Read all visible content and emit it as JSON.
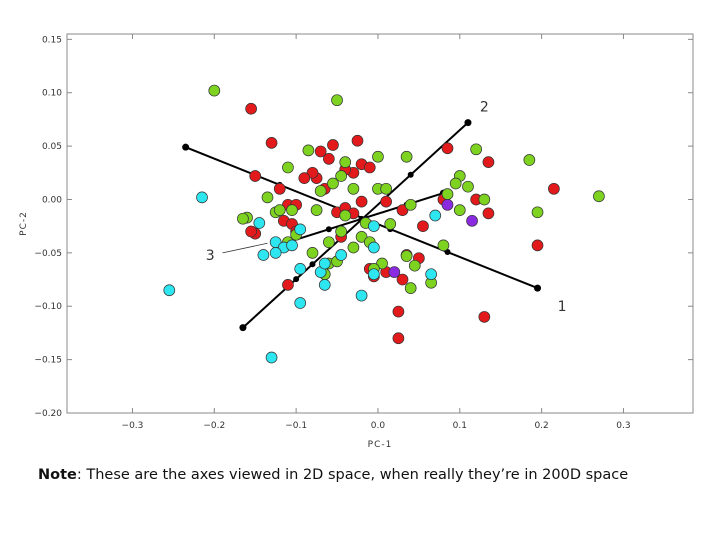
{
  "chart_data": {
    "type": "scatter",
    "title": "",
    "xlabel": "PC-1",
    "ylabel": "PC-2",
    "xlim": [
      -0.38,
      0.385
    ],
    "ylim": [
      -0.2,
      0.155
    ],
    "xticks": [
      -0.3,
      -0.2,
      -0.1,
      0.0,
      0.1,
      0.2,
      0.3
    ],
    "xtick_labels": [
      "-0.3",
      "-0.2",
      "-0.1",
      "0.0",
      "0.1",
      "0.2",
      "0.3"
    ],
    "yticks": [
      -0.2,
      -0.15,
      -0.1,
      -0.05,
      0.0,
      0.05,
      0.1,
      0.15
    ],
    "ytick_labels": [
      "-0.20",
      "-0.15",
      "-0.10",
      "-0.05",
      "0.00",
      "0.05",
      "0.10",
      "0.15"
    ],
    "grid": false,
    "legend": "none",
    "series": [
      {
        "color": "#e31a1c",
        "points": [
          [
            -0.155,
            0.085
          ],
          [
            -0.13,
            0.053
          ],
          [
            -0.07,
            0.045
          ],
          [
            -0.055,
            0.051
          ],
          [
            -0.025,
            0.055
          ],
          [
            -0.02,
            0.033
          ],
          [
            -0.01,
            0.03
          ],
          [
            -0.03,
            0.025
          ],
          [
            -0.04,
            0.028
          ],
          [
            -0.06,
            0.038
          ],
          [
            -0.075,
            0.02
          ],
          [
            -0.065,
            0.01
          ],
          [
            -0.08,
            0.025
          ],
          [
            -0.09,
            0.02
          ],
          [
            -0.15,
            0.022
          ],
          [
            -0.12,
            0.01
          ],
          [
            -0.11,
            -0.005
          ],
          [
            -0.1,
            -0.005
          ],
          [
            -0.115,
            -0.02
          ],
          [
            -0.105,
            -0.023
          ],
          [
            -0.1,
            -0.03
          ],
          [
            -0.15,
            -0.032
          ],
          [
            -0.05,
            -0.012
          ],
          [
            -0.04,
            -0.008
          ],
          [
            -0.02,
            -0.002
          ],
          [
            -0.03,
            -0.013
          ],
          [
            -0.045,
            -0.035
          ],
          [
            0.01,
            -0.002
          ],
          [
            0.03,
            -0.01
          ],
          [
            0.055,
            -0.025
          ],
          [
            0.085,
            0.048
          ],
          [
            0.135,
            0.035
          ],
          [
            0.215,
            0.01
          ],
          [
            0.08,
            0.0
          ],
          [
            0.12,
            0.0
          ],
          [
            0.135,
            -0.013
          ],
          [
            0.195,
            -0.043
          ],
          [
            0.035,
            -0.052
          ],
          [
            0.05,
            -0.055
          ],
          [
            0.01,
            -0.068
          ],
          [
            -0.01,
            -0.065
          ],
          [
            0.03,
            -0.075
          ],
          [
            -0.005,
            -0.072
          ],
          [
            -0.11,
            -0.08
          ],
          [
            0.025,
            -0.105
          ],
          [
            0.025,
            -0.13
          ],
          [
            0.13,
            -0.11
          ],
          [
            -0.155,
            -0.03
          ]
        ]
      },
      {
        "color": "#7ed321",
        "points": [
          [
            -0.2,
            0.102
          ],
          [
            -0.05,
            0.093
          ],
          [
            -0.085,
            0.046
          ],
          [
            -0.04,
            0.035
          ],
          [
            0.0,
            0.04
          ],
          [
            0.035,
            0.04
          ],
          [
            0.185,
            0.037
          ],
          [
            0.12,
            0.047
          ],
          [
            0.1,
            0.022
          ],
          [
            0.11,
            0.012
          ],
          [
            -0.045,
            0.022
          ],
          [
            -0.055,
            0.015
          ],
          [
            -0.07,
            0.008
          ],
          [
            -0.03,
            0.01
          ],
          [
            -0.11,
            0.03
          ],
          [
            -0.135,
            0.002
          ],
          [
            -0.125,
            -0.012
          ],
          [
            -0.12,
            -0.01
          ],
          [
            -0.105,
            -0.01
          ],
          [
            -0.075,
            -0.01
          ],
          [
            -0.16,
            -0.017
          ],
          [
            -0.165,
            -0.018
          ],
          [
            0.0,
            0.01
          ],
          [
            0.01,
            0.01
          ],
          [
            0.04,
            -0.005
          ],
          [
            0.085,
            0.005
          ],
          [
            0.095,
            0.015
          ],
          [
            0.13,
            0.0
          ],
          [
            0.195,
            -0.012
          ],
          [
            0.27,
            0.003
          ],
          [
            0.1,
            -0.01
          ],
          [
            0.08,
            -0.043
          ],
          [
            -0.02,
            -0.035
          ],
          [
            -0.04,
            -0.015
          ],
          [
            -0.045,
            -0.03
          ],
          [
            -0.06,
            -0.04
          ],
          [
            -0.06,
            -0.06
          ],
          [
            -0.065,
            -0.07
          ],
          [
            -0.05,
            -0.058
          ],
          [
            -0.03,
            -0.045
          ],
          [
            -0.01,
            -0.04
          ],
          [
            -0.015,
            -0.022
          ],
          [
            0.015,
            -0.023
          ],
          [
            0.035,
            -0.053
          ],
          [
            0.045,
            -0.062
          ],
          [
            0.065,
            -0.078
          ],
          [
            0.04,
            -0.083
          ],
          [
            0.005,
            -0.06
          ],
          [
            -0.005,
            -0.065
          ],
          [
            -0.1,
            -0.033
          ],
          [
            -0.11,
            -0.04
          ],
          [
            -0.08,
            -0.05
          ]
        ]
      },
      {
        "color": "#2ee6f0",
        "points": [
          [
            -0.215,
            0.002
          ],
          [
            -0.255,
            -0.085
          ],
          [
            -0.145,
            -0.022
          ],
          [
            -0.125,
            -0.04
          ],
          [
            -0.115,
            -0.045
          ],
          [
            -0.105,
            -0.043
          ],
          [
            -0.095,
            -0.028
          ],
          [
            -0.125,
            -0.05
          ],
          [
            -0.14,
            -0.052
          ],
          [
            -0.095,
            -0.065
          ],
          [
            -0.07,
            -0.068
          ],
          [
            -0.095,
            -0.097
          ],
          [
            -0.065,
            -0.08
          ],
          [
            -0.02,
            -0.09
          ],
          [
            -0.13,
            -0.148
          ],
          [
            -0.065,
            -0.06
          ],
          [
            -0.045,
            -0.052
          ],
          [
            -0.005,
            -0.025
          ],
          [
            -0.005,
            -0.045
          ],
          [
            0.065,
            -0.07
          ],
          [
            0.07,
            -0.015
          ],
          [
            -0.005,
            -0.07
          ]
        ]
      },
      {
        "color": "#8a2be2",
        "points": [
          [
            0.085,
            -0.005
          ],
          [
            0.115,
            -0.02
          ],
          [
            0.02,
            -0.068
          ]
        ]
      }
    ],
    "annotations": [
      {
        "label": "1",
        "x": 0.225,
        "y": -0.1
      },
      {
        "label": "2",
        "x": 0.13,
        "y": 0.087
      },
      {
        "label": "3",
        "x": -0.205,
        "y": -0.052
      }
    ]
  },
  "note": {
    "prefix": "Note",
    "text": ": These are the axes viewed in 2D space, when really they’re in 200D space"
  }
}
